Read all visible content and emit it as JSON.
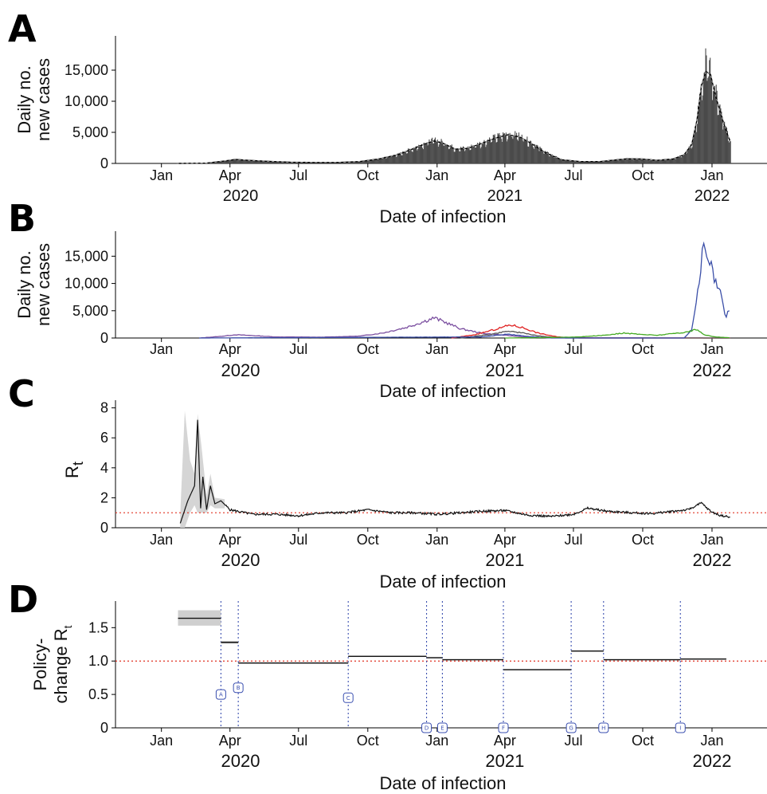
{
  "figure": {
    "panel_letters": [
      "A",
      "B",
      "C",
      "D"
    ]
  },
  "chart_data": [
    {
      "panel": "A",
      "type": "bar",
      "ylabel_lines": [
        "Daily no.",
        "new cases"
      ],
      "xlabel": "Date of infection",
      "month_ticks": [
        "Jan",
        "Apr",
        "Jul",
        "Oct",
        "Jan",
        "Apr",
        "Jul",
        "Oct",
        "Jan"
      ],
      "year_labels": [
        "2020",
        "2021",
        "2022"
      ],
      "y_ticks": [
        "0",
        "5,000",
        "10,000",
        "15,000"
      ],
      "ylim": [
        0,
        20000
      ],
      "x_start": "2020-01-21",
      "x_end": "2022-01-25",
      "bar_color": "#4a4a4a",
      "line_color": "#000000",
      "smoothed_series": [
        [
          "2020-01-21",
          0
        ],
        [
          "2020-03-01",
          50
        ],
        [
          "2020-03-25",
          400
        ],
        [
          "2020-04-08",
          650
        ],
        [
          "2020-04-25",
          500
        ],
        [
          "2020-05-20",
          350
        ],
        [
          "2020-06-20",
          200
        ],
        [
          "2020-07-20",
          150
        ],
        [
          "2020-08-20",
          150
        ],
        [
          "2020-09-20",
          300
        ],
        [
          "2020-10-15",
          700
        ],
        [
          "2020-11-10",
          1400
        ],
        [
          "2020-12-01",
          2400
        ],
        [
          "2020-12-15",
          3100
        ],
        [
          "2020-12-28",
          3600
        ],
        [
          "2021-01-08",
          3300
        ],
        [
          "2021-01-25",
          2300
        ],
        [
          "2021-02-10",
          2400
        ],
        [
          "2021-03-01",
          3200
        ],
        [
          "2021-03-20",
          4100
        ],
        [
          "2021-04-05",
          4600
        ],
        [
          "2021-04-20",
          4300
        ],
        [
          "2021-05-05",
          3300
        ],
        [
          "2021-05-25",
          1700
        ],
        [
          "2021-06-15",
          600
        ],
        [
          "2021-07-10",
          300
        ],
        [
          "2021-08-05",
          300
        ],
        [
          "2021-08-25",
          550
        ],
        [
          "2021-09-10",
          750
        ],
        [
          "2021-09-30",
          700
        ],
        [
          "2021-10-20",
          500
        ],
        [
          "2021-11-10",
          700
        ],
        [
          "2021-11-25",
          1400
        ],
        [
          "2021-12-05",
          3000
        ],
        [
          "2021-12-12",
          7000
        ],
        [
          "2021-12-18",
          12500
        ],
        [
          "2021-12-24",
          14800
        ],
        [
          "2021-12-30",
          14300
        ],
        [
          "2022-01-05",
          11200
        ],
        [
          "2022-01-12",
          8200
        ],
        [
          "2022-01-19",
          5500
        ],
        [
          "2022-01-25",
          3500
        ]
      ],
      "peak_daily": 18500
    },
    {
      "panel": "B",
      "type": "line",
      "ylabel_lines": [
        "Daily no.",
        "new cases"
      ],
      "xlabel": "Date of infection",
      "month_ticks": [
        "Jan",
        "Apr",
        "Jul",
        "Oct",
        "Jan",
        "Apr",
        "Jul",
        "Oct",
        "Jan"
      ],
      "year_labels": [
        "2020",
        "2021",
        "2022"
      ],
      "y_ticks": [
        "0",
        "5,000",
        "10,000",
        "15,000"
      ],
      "ylim": [
        0,
        19000
      ],
      "series": [
        {
          "color": "#7b4fa0",
          "points": [
            [
              "2020-02-20",
              0
            ],
            [
              "2020-03-20",
              300
            ],
            [
              "2020-04-08",
              600
            ],
            [
              "2020-04-30",
              450
            ],
            [
              "2020-06-01",
              200
            ],
            [
              "2020-08-01",
              150
            ],
            [
              "2020-09-20",
              350
            ],
            [
              "2020-10-20",
              900
            ],
            [
              "2020-11-20",
              1900
            ],
            [
              "2020-12-10",
              2800
            ],
            [
              "2020-12-28",
              3700
            ],
            [
              "2021-01-10",
              3000
            ],
            [
              "2021-02-01",
              1700
            ],
            [
              "2021-03-01",
              900
            ],
            [
              "2021-04-01",
              500
            ],
            [
              "2021-05-01",
              150
            ],
            [
              "2021-06-01",
              50
            ],
            [
              "2022-01-25",
              0
            ]
          ]
        },
        {
          "color": "#e02020",
          "points": [
            [
              "2021-01-20",
              0
            ],
            [
              "2021-02-20",
              600
            ],
            [
              "2021-03-20",
              1600
            ],
            [
              "2021-04-08",
              2400
            ],
            [
              "2021-04-25",
              1900
            ],
            [
              "2021-05-15",
              900
            ],
            [
              "2021-06-10",
              200
            ],
            [
              "2021-07-10",
              0
            ],
            [
              "2022-01-25",
              0
            ]
          ]
        },
        {
          "color": "#555555",
          "points": [
            [
              "2021-02-01",
              0
            ],
            [
              "2021-03-15",
              700
            ],
            [
              "2021-04-05",
              1300
            ],
            [
              "2021-04-25",
              900
            ],
            [
              "2021-05-20",
              300
            ],
            [
              "2021-06-20",
              0
            ],
            [
              "2022-01-25",
              0
            ]
          ]
        },
        {
          "color": "#3b4fa8",
          "points": [
            [
              "2020-02-20",
              0
            ],
            [
              "2021-03-01",
              200
            ],
            [
              "2021-04-05",
              700
            ],
            [
              "2021-05-01",
              300
            ],
            [
              "2021-06-01",
              0
            ],
            [
              "2021-11-25",
              0
            ],
            [
              "2021-12-05",
              1500
            ],
            [
              "2021-12-12",
              7000
            ],
            [
              "2021-12-17",
              13000
            ],
            [
              "2021-12-22",
              17800
            ],
            [
              "2021-12-27",
              14500
            ],
            [
              "2022-01-02",
              12000
            ],
            [
              "2022-01-08",
              9500
            ],
            [
              "2022-01-14",
              7600
            ],
            [
              "2022-01-19",
              3300
            ],
            [
              "2022-01-22",
              5200
            ],
            [
              "2022-01-25",
              4300
            ]
          ]
        },
        {
          "color": "#44aa22",
          "points": [
            [
              "2021-04-01",
              0
            ],
            [
              "2021-06-01",
              100
            ],
            [
              "2021-07-10",
              200
            ],
            [
              "2021-08-10",
              500
            ],
            [
              "2021-09-05",
              900
            ],
            [
              "2021-09-25",
              700
            ],
            [
              "2021-10-20",
              500
            ],
            [
              "2021-11-15",
              900
            ],
            [
              "2021-11-30",
              1100
            ],
            [
              "2021-12-10",
              1600
            ],
            [
              "2021-12-22",
              600
            ],
            [
              "2022-01-05",
              200
            ],
            [
              "2022-01-25",
              50
            ]
          ]
        }
      ]
    },
    {
      "panel": "C",
      "type": "line",
      "ylabel": "R",
      "ylabel_sub": "t",
      "xlabel": "Date of infection",
      "month_ticks": [
        "Jan",
        "Apr",
        "Jul",
        "Oct",
        "Jan",
        "Apr",
        "Jul",
        "Oct",
        "Jan"
      ],
      "year_labels": [
        "2020",
        "2021",
        "2022"
      ],
      "y_ticks": [
        "0",
        "2",
        "4",
        "6",
        "8"
      ],
      "ylim": [
        0,
        8.3
      ],
      "reference_line": 1,
      "reference_color": "#e03020",
      "band_color": "#d0d0d0",
      "series": [
        [
          "2020-01-26",
          0.3
        ],
        [
          "2020-02-05",
          1.8
        ],
        [
          "2020-02-14",
          2.8
        ],
        [
          "2020-02-18",
          7.2
        ],
        [
          "2020-02-22",
          1.3
        ],
        [
          "2020-02-25",
          3.4
        ],
        [
          "2020-03-01",
          1.2
        ],
        [
          "2020-03-06",
          2.8
        ],
        [
          "2020-03-12",
          1.6
        ],
        [
          "2020-03-20",
          1.8
        ],
        [
          "2020-04-01",
          1.2
        ],
        [
          "2020-05-01",
          0.9
        ],
        [
          "2020-06-01",
          0.9
        ],
        [
          "2020-07-01",
          0.8
        ],
        [
          "2020-08-01",
          1.0
        ],
        [
          "2020-09-01",
          1.0
        ],
        [
          "2020-10-01",
          1.2
        ],
        [
          "2020-11-01",
          1.0
        ],
        [
          "2020-12-01",
          1.0
        ],
        [
          "2021-01-01",
          0.9
        ],
        [
          "2021-02-01",
          1.0
        ],
        [
          "2021-03-01",
          1.1
        ],
        [
          "2021-04-01",
          1.15
        ],
        [
          "2021-05-01",
          0.85
        ],
        [
          "2021-06-01",
          0.75
        ],
        [
          "2021-07-01",
          0.9
        ],
        [
          "2021-07-20",
          1.3
        ],
        [
          "2021-08-15",
          1.1
        ],
        [
          "2021-09-15",
          1.0
        ],
        [
          "2021-10-15",
          0.95
        ],
        [
          "2021-11-10",
          1.1
        ],
        [
          "2021-11-30",
          1.2
        ],
        [
          "2021-12-18",
          1.65
        ],
        [
          "2021-12-30",
          1.1
        ],
        [
          "2022-01-10",
          0.85
        ],
        [
          "2022-01-25",
          0.7
        ]
      ],
      "band": [
        [
          "2020-01-26",
          0.0,
          0.9
        ],
        [
          "2020-02-01",
          0.0,
          7.8
        ],
        [
          "2020-02-08",
          1.0,
          4.5
        ],
        [
          "2020-02-14",
          1.5,
          3.6
        ],
        [
          "2020-02-18",
          1.0,
          7.6
        ],
        [
          "2020-02-23",
          1.0,
          5.5
        ],
        [
          "2020-03-01",
          1.0,
          2.2
        ],
        [
          "2020-03-06",
          1.5,
          3.6
        ],
        [
          "2020-03-12",
          1.3,
          2.0
        ],
        [
          "2020-03-25",
          1.3,
          1.9
        ]
      ]
    },
    {
      "panel": "D",
      "type": "step",
      "ylabel_lines": [
        "Policy-",
        "change R"
      ],
      "ylabel_sub": "t",
      "xlabel": "Date of infection",
      "month_ticks": [
        "Jan",
        "Apr",
        "Jul",
        "Oct",
        "Jan",
        "Apr",
        "Jul",
        "Oct",
        "Jan"
      ],
      "year_labels": [
        "2020",
        "2021",
        "2022"
      ],
      "y_ticks": [
        "0",
        "0.5",
        "1.0",
        "1.5"
      ],
      "ylim": [
        0,
        1.85
      ],
      "reference_line": 1,
      "reference_color": "#e03020",
      "vline_color": "#3a4fb0",
      "segments": [
        {
          "start": "2020-01-23",
          "end": "2020-03-20",
          "value": 1.64,
          "lo": 1.53,
          "hi": 1.76
        },
        {
          "start": "2020-03-20",
          "end": "2020-04-12",
          "value": 1.28,
          "lo": 1.26,
          "hi": 1.3
        },
        {
          "start": "2020-04-12",
          "end": "2020-09-05",
          "value": 0.97,
          "lo": 0.96,
          "hi": 0.98
        },
        {
          "start": "2020-09-05",
          "end": "2020-12-18",
          "value": 1.07,
          "lo": 1.06,
          "hi": 1.08
        },
        {
          "start": "2020-12-18",
          "end": "2021-01-08",
          "value": 1.05,
          "lo": 1.04,
          "hi": 1.06
        },
        {
          "start": "2021-01-08",
          "end": "2021-03-30",
          "value": 1.02,
          "lo": 1.01,
          "hi": 1.03
        },
        {
          "start": "2021-03-30",
          "end": "2021-06-28",
          "value": 0.87,
          "lo": 0.86,
          "hi": 0.88
        },
        {
          "start": "2021-06-28",
          "end": "2021-08-10",
          "value": 1.15,
          "lo": 1.14,
          "hi": 1.16
        },
        {
          "start": "2021-08-10",
          "end": "2021-11-20",
          "value": 1.02,
          "lo": 1.01,
          "hi": 1.03
        },
        {
          "start": "2021-11-20",
          "end": "2022-01-20",
          "value": 1.03,
          "lo": 1.02,
          "hi": 1.04
        }
      ],
      "policy_changes": [
        {
          "label": "A",
          "date": "2020-03-20",
          "badge_y": 0.5
        },
        {
          "label": "B",
          "date": "2020-04-12",
          "badge_y": 0.6
        },
        {
          "label": "C",
          "date": "2020-09-05",
          "badge_y": 0.45
        },
        {
          "label": "D",
          "date": "2020-12-18",
          "badge_y": 0.0
        },
        {
          "label": "E",
          "date": "2021-01-08",
          "badge_y": 0.0
        },
        {
          "label": "F",
          "date": "2021-03-30",
          "badge_y": 0.0
        },
        {
          "label": "G",
          "date": "2021-06-28",
          "badge_y": 0.0
        },
        {
          "label": "H",
          "date": "2021-08-10",
          "badge_y": 0.0
        },
        {
          "label": "I",
          "date": "2021-11-20",
          "badge_y": 0.0
        }
      ]
    }
  ]
}
